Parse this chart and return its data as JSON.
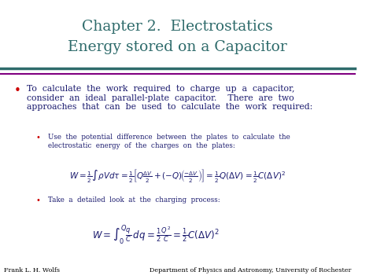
{
  "title_line1": "Chapter 2.  Electrostatics",
  "title_line2": "Energy stored on a Capacitor",
  "title_color": "#2E6B6B",
  "background_color": "#FFFFFF",
  "header_bar_color1": "#2E6B6B",
  "header_bar_color2": "#800080",
  "bullet_color": "#CC0000",
  "sub_bullet_color": "#CC0000",
  "main_text_color": "#1A1A6E",
  "sub_text_color": "#1A1A6E",
  "footer_left": "Frank L. H. Wolfs",
  "footer_right": "Department of Physics and Astronomy, University of Rochester",
  "footer_color": "#000000",
  "figsize": [
    4.74,
    3.55
  ],
  "dpi": 100
}
